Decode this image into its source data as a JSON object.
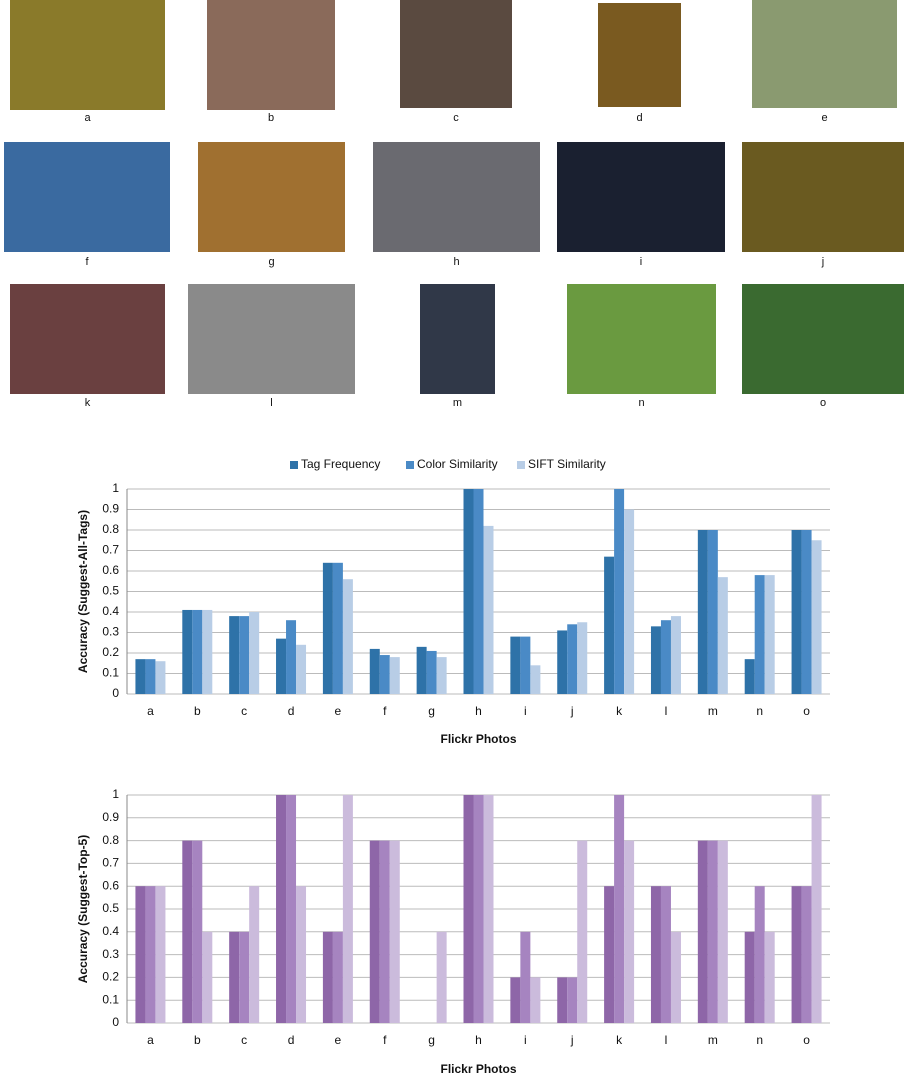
{
  "photo_labels": [
    "a",
    "b",
    "c",
    "d",
    "e",
    "f",
    "g",
    "h",
    "i",
    "j",
    "k",
    "l",
    "m",
    "n",
    "o"
  ],
  "chart_data": [
    {
      "type": "bar",
      "y_label": "Accuracy (Suggest-All-Tags)",
      "x_label": "Flickr Photos",
      "categories": [
        "a",
        "b",
        "c",
        "d",
        "e",
        "f",
        "g",
        "h",
        "i",
        "j",
        "k",
        "l",
        "m",
        "n",
        "o"
      ],
      "series": [
        {
          "name": "Tag Frequency",
          "color": "#2e72a8",
          "values": [
            0.17,
            0.41,
            0.38,
            0.27,
            0.64,
            0.22,
            0.23,
            1,
            0.28,
            0.31,
            0.67,
            0.33,
            0.8,
            0.17,
            0.8
          ]
        },
        {
          "name": "Color Similarity",
          "color": "#4a8ac6",
          "values": [
            0.17,
            0.41,
            0.38,
            0.36,
            0.64,
            0.19,
            0.21,
            1,
            0.28,
            0.34,
            1,
            0.36,
            0.8,
            0.58,
            0.8
          ]
        },
        {
          "name": "SIFT Similarity",
          "color": "#b8cde6",
          "values": [
            0.16,
            0.41,
            0.4,
            0.24,
            0.56,
            0.18,
            0.18,
            0.82,
            0.14,
            0.35,
            0.9,
            0.38,
            0.57,
            0.58,
            0.75
          ]
        }
      ],
      "ylim": [
        0,
        1
      ],
      "yticks": [
        0,
        0.1,
        0.2,
        0.3,
        0.4,
        0.5,
        0.6,
        0.7,
        0.8,
        0.9,
        1
      ],
      "grid": true,
      "legend": "top"
    },
    {
      "type": "bar",
      "y_label": "Accuracy (Suggest-Top-5)",
      "x_label": "Flickr Photos",
      "categories": [
        "a",
        "b",
        "c",
        "d",
        "e",
        "f",
        "g",
        "h",
        "i",
        "j",
        "k",
        "l",
        "m",
        "n",
        "o"
      ],
      "series": [
        {
          "color": "#8e66a8",
          "values": [
            0.6,
            0.8,
            0.4,
            1,
            0.4,
            0.8,
            0,
            1,
            0.2,
            0.2,
            0.6,
            0.6,
            0.8,
            0.4,
            0.6
          ]
        },
        {
          "color": "#a684c0",
          "values": [
            0.6,
            0.8,
            0.4,
            1,
            0.4,
            0.8,
            0,
            1,
            0.4,
            0.2,
            1,
            0.6,
            0.8,
            0.6,
            0.6
          ]
        },
        {
          "color": "#cbbbdc",
          "values": [
            0.6,
            0.4,
            0.6,
            0.6,
            1,
            0.8,
            0.4,
            1,
            0.2,
            0.8,
            0.8,
            0.4,
            0.8,
            0.4,
            1
          ]
        }
      ],
      "ylim": [
        0,
        1
      ],
      "yticks": [
        0,
        0.1,
        0.2,
        0.3,
        0.4,
        0.5,
        0.6,
        0.7,
        0.8,
        0.9,
        1
      ],
      "grid": true
    }
  ]
}
